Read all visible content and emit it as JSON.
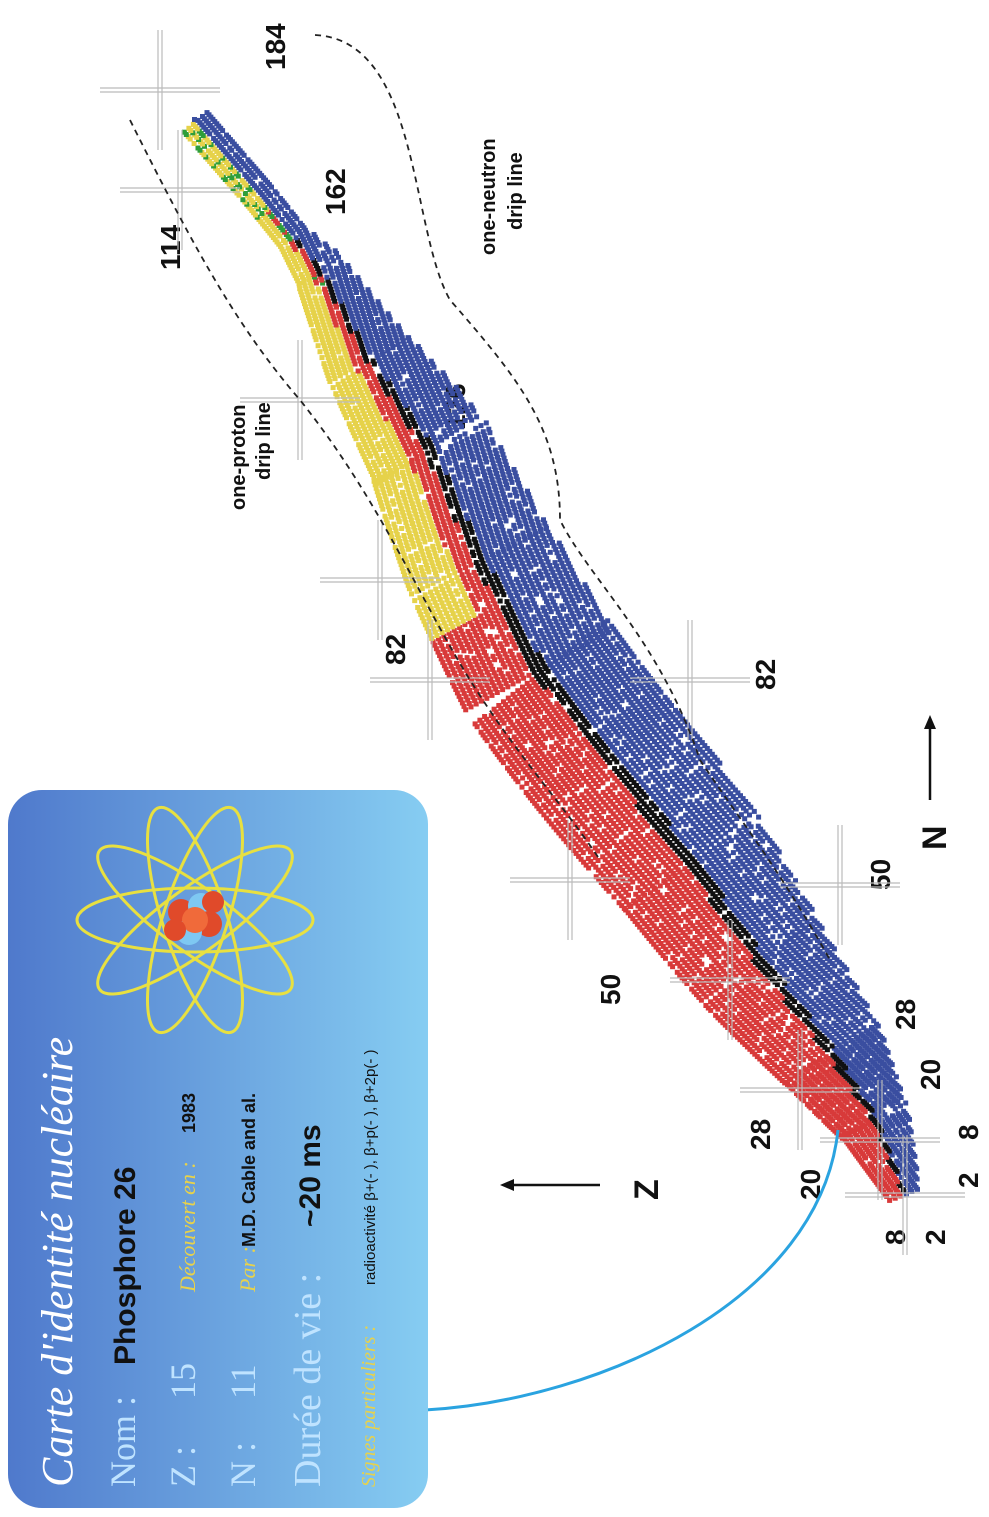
{
  "card": {
    "title": "Carte d'identité nucléaire",
    "nom_label": "Nom :",
    "nom_value": "Phosphore 26",
    "z_label": "Z :",
    "z_value": "15",
    "n_label": "N :",
    "n_value": "11",
    "discovered_label": "Découvert en :",
    "discovered_value": "1983",
    "by_label": "Par :",
    "by_value": "M.D. Cable and al.",
    "lifetime_label": "Durée de vie :",
    "lifetime_value": "~20 ms",
    "signs_label": "Signes particuliers :",
    "signs_value": "radioactivité β+(- ), β+p(- ), β+2p(- )"
  },
  "chart": {
    "axis_z": "Z",
    "axis_n": "N",
    "proton_drip_label": [
      "one-proton",
      "drip line"
    ],
    "neutron_drip_label": [
      "one-neutron",
      "drip line"
    ],
    "magic_z_labels": [
      "2",
      "8",
      "20",
      "28",
      "50",
      "82",
      "114"
    ],
    "magic_n_labels": [
      "2",
      "8",
      "20",
      "28",
      "50",
      "82",
      "126",
      "162",
      "184"
    ],
    "colors": {
      "card_top": "#7fc6f0",
      "card_bottom": "#4f7fd0",
      "title": "#ffffff",
      "label_light": "#bfe3ff",
      "label_gold": "#e8d24a",
      "value_dark": "#111111",
      "proton_rich": "#d83a3a",
      "neutron_rich": "#3a4ea0",
      "alpha": "#e6d24a",
      "fission": "#2f9e3a",
      "stable": "#111111",
      "connector": "#2aa3e0"
    }
  }
}
